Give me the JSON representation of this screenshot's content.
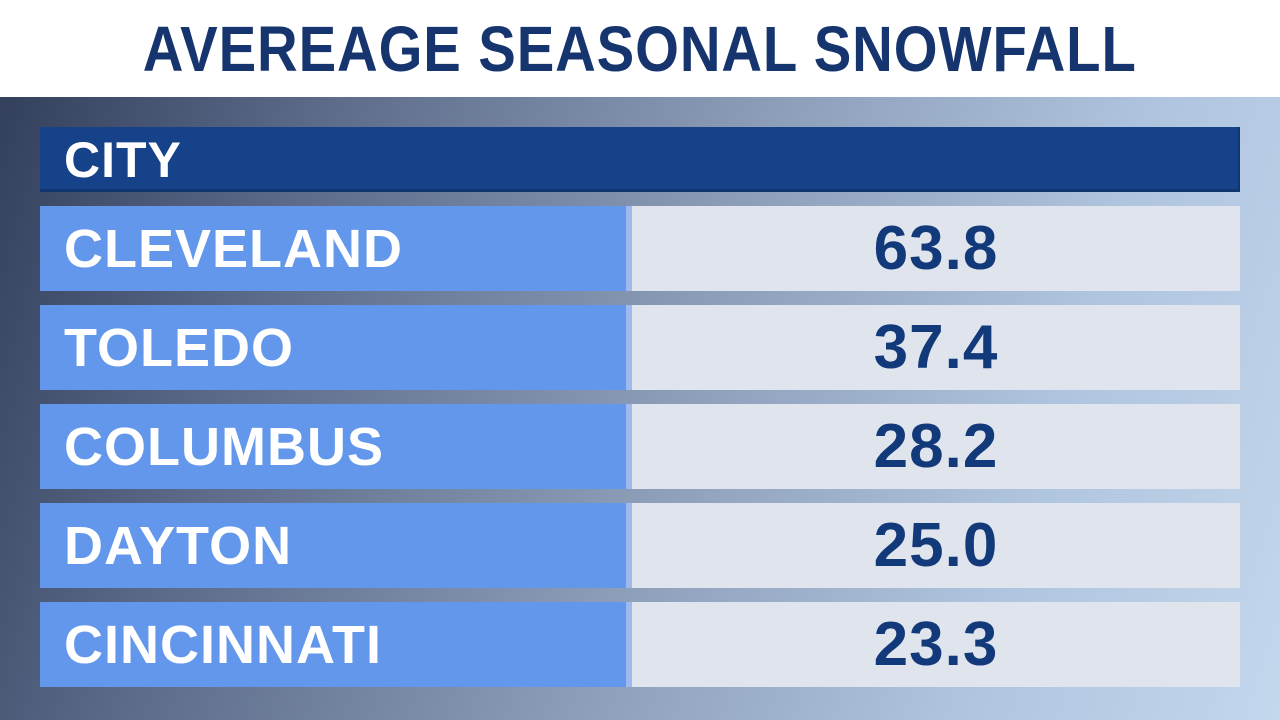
{
  "title": "AVEREAGE SEASONAL SNOWFALL",
  "table": {
    "header_label": "CITY",
    "rows": [
      {
        "city": "CLEVELAND",
        "value": "63.8"
      },
      {
        "city": "TOLEDO",
        "value": "37.4"
      },
      {
        "city": "COLUMBUS",
        "value": "28.2"
      },
      {
        "city": "DAYTON",
        "value": "25.0"
      },
      {
        "city": "CINCINNATI",
        "value": "23.3"
      }
    ]
  },
  "chart_data": {
    "type": "table",
    "title": "AVEREAGE SEASONAL SNOWFALL",
    "columns": [
      "CITY",
      ""
    ],
    "categories": [
      "CLEVELAND",
      "TOLEDO",
      "COLUMBUS",
      "DAYTON",
      "CINCINNATI"
    ],
    "values": [
      63.8,
      37.4,
      28.2,
      25.0,
      23.3
    ]
  },
  "colors": {
    "title_text": "#16356E",
    "title_band_bg": "#FFFFFF",
    "header_bg": "#164289",
    "header_text": "#FFFFFF",
    "city_cell_bg": "#6397EB",
    "city_cell_text": "#FFFFFF",
    "value_cell_bg": "#DFE4ED",
    "value_cell_text": "#123A7A",
    "background_gradient_start": "#33405C",
    "background_gradient_end": "#C3D7ED"
  }
}
